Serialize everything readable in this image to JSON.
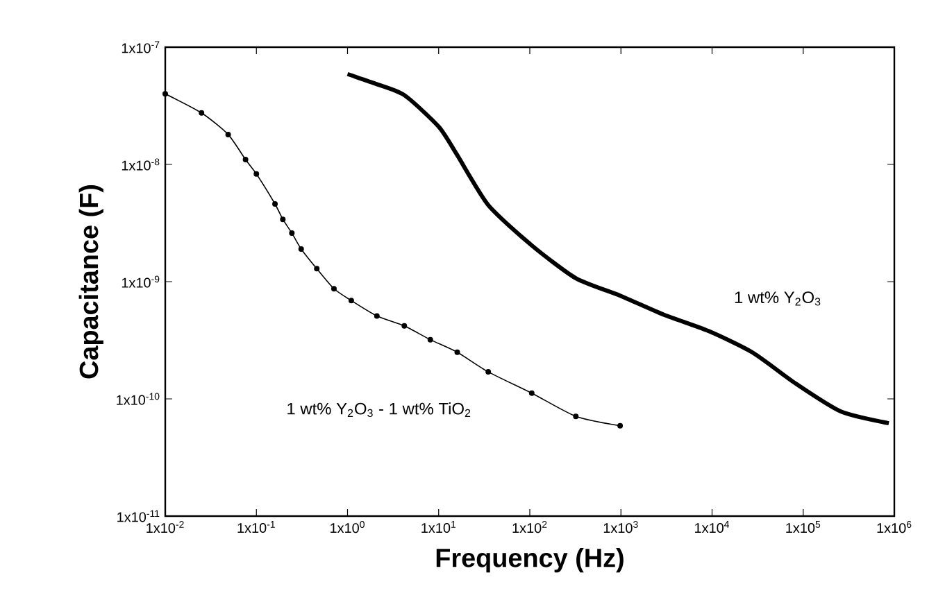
{
  "chart_data": {
    "type": "line",
    "xlabel": "Frequency (Hz)",
    "ylabel": "Capacitance (F)",
    "log": "xy",
    "xlim": [
      0.01,
      1000000
    ],
    "ylim": [
      1e-11,
      1e-07
    ],
    "xticks": [
      {
        "value": 0.01,
        "label": "1x10$^{-2}$"
      },
      {
        "value": 0.1,
        "label": "1x10$^{-1}$"
      },
      {
        "value": 1,
        "label": "1x10$^{0}$"
      },
      {
        "value": 10,
        "label": "1x10$^{1}$"
      },
      {
        "value": 100,
        "label": "1x10$^{2}$"
      },
      {
        "value": 1000,
        "label": "1x10$^{3}$"
      },
      {
        "value": 10000,
        "label": "1x10$^{4}$"
      },
      {
        "value": 100000,
        "label": "1x10$^{5}$"
      },
      {
        "value": 1000000,
        "label": "1x10$^{6}$"
      }
    ],
    "yticks": [
      {
        "value": 1e-11,
        "label": "1x10$^{-11}$"
      },
      {
        "value": 1e-10,
        "label": "1x10$^{-10}$"
      },
      {
        "value": 1e-09,
        "label": "1x10$^{-9}$"
      },
      {
        "value": 1e-08,
        "label": "1x10$^{-8}$"
      },
      {
        "value": 1e-07,
        "label": "1x10$^{-7}$"
      }
    ],
    "grid": false,
    "legend": false,
    "series": [
      {
        "name": "1 wt% Y$_{2}$O$_{3}$",
        "color": "#000000",
        "marker": "none",
        "x": [
          1,
          2,
          4.2,
          10,
          16,
          35,
          105,
          320,
          980,
          3000,
          9100,
          27500,
          83000,
          260000,
          870000
        ],
        "values": [
          5.9e-08,
          4.9e-08,
          3.9e-08,
          2.1e-08,
          1.2e-08,
          4.5e-09,
          2.04e-09,
          1.07e-09,
          7.6e-10,
          5.2e-10,
          3.8e-10,
          2.5e-10,
          1.35e-10,
          7.8e-11,
          6.2e-11
        ]
      },
      {
        "name": "1 wt% Y$_{2}$O$_{3}$ - 1 wt% TiO$_{2}$",
        "color": "#000000",
        "marker": "circle",
        "x": [
          0.01,
          0.025,
          0.049,
          0.076,
          0.1,
          0.16,
          0.195,
          0.245,
          0.31,
          0.46,
          0.71,
          1.1,
          2.1,
          4.2,
          8.1,
          16,
          35,
          105,
          320,
          980
        ],
        "values": [
          4e-08,
          2.75e-08,
          1.8e-08,
          1.1e-08,
          8.3e-09,
          4.6e-09,
          3.4e-09,
          2.6e-09,
          1.9e-09,
          1.29e-09,
          8.7e-10,
          6.9e-10,
          5.1e-10,
          4.2e-10,
          3.2e-10,
          2.5e-10,
          1.7e-10,
          1.12e-10,
          7.1e-11,
          5.9e-11
        ]
      }
    ]
  }
}
